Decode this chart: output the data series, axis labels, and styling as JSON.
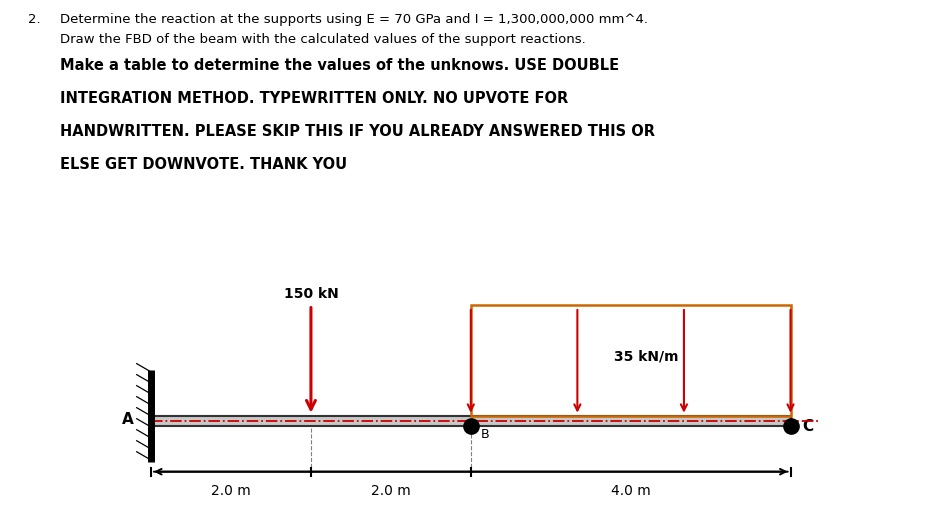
{
  "title_line1_num": "2.",
  "title_line1_text": "Determine the reaction at the supports using E = 70 GPa and I = 1,300,000,000 mm^4.",
  "title_line2": "Draw the FBD of the beam with the calculated values of the support reactions.",
  "title_bold_lines": [
    "Make a table to determine the values of the unknows. USE DOUBLE",
    "INTEGRATION METHOD. TYPEWRITTEN ONLY. NO UPVOTE FOR",
    "HANDWRITTEN. PLEASE SKIP THIS IF YOU ALREADY ANSWERED THIS OR",
    "ELSE GET DOWNVOTE. THANK YOU"
  ],
  "dashed_color": "#CC0000",
  "load_color": "#CC0000",
  "dist_load_color": "#CC0000",
  "dist_load_box_color": "#CC6600",
  "beam_fill": "#c8c8c8",
  "beam_edge": "#333333",
  "background_color": "#ffffff",
  "point_load_label": "150 kN",
  "dist_load_label": "35 kN/m",
  "dim_2_0_left": "2.0 m",
  "dim_2_0_right": "2.0 m",
  "dim_4_0": "4.0 m",
  "label_A": "A",
  "label_B": "B",
  "label_C": "C"
}
